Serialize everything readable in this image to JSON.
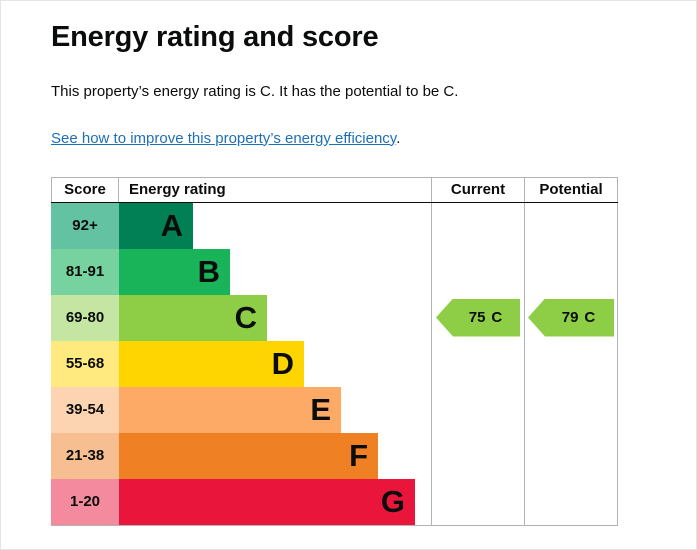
{
  "page": {
    "title": "Energy rating and score",
    "summary": "This property’s energy rating is C. It has the potential to be C.",
    "improvement_link": "See how to improve this property’s energy efficiency",
    "improvement_link_suffix": "."
  },
  "chart_data": {
    "type": "bar",
    "title": "Energy rating and score",
    "columns": {
      "score": "Score",
      "rating": "Energy rating",
      "current": "Current",
      "potential": "Potential"
    },
    "bands": [
      {
        "score": "92+",
        "letter": "A",
        "color": "#008054",
        "tint": "#62c2a2"
      },
      {
        "score": "81-91",
        "letter": "B",
        "color": "#19b459",
        "tint": "#76d29e"
      },
      {
        "score": "69-80",
        "letter": "C",
        "color": "#8dce46",
        "tint": "#c5e6a2"
      },
      {
        "score": "55-68",
        "letter": "D",
        "color": "#ffd500",
        "tint": "#ffea7f"
      },
      {
        "score": "39-54",
        "letter": "E",
        "color": "#fcaa65",
        "tint": "#fdd4b2"
      },
      {
        "score": "21-38",
        "letter": "F",
        "color": "#ef8023",
        "tint": "#f7bf91"
      },
      {
        "score": "1-20",
        "letter": "G",
        "color": "#e9153b",
        "tint": "#f48a9d"
      }
    ],
    "current": {
      "value": 75,
      "band": "C",
      "color": "#8dce46"
    },
    "potential": {
      "value": 79,
      "band": "C",
      "color": "#8dce46"
    }
  },
  "colors": {
    "text": "#0b0c0c",
    "link": "#1d70b8",
    "grid_border": "#b1b4b6"
  }
}
